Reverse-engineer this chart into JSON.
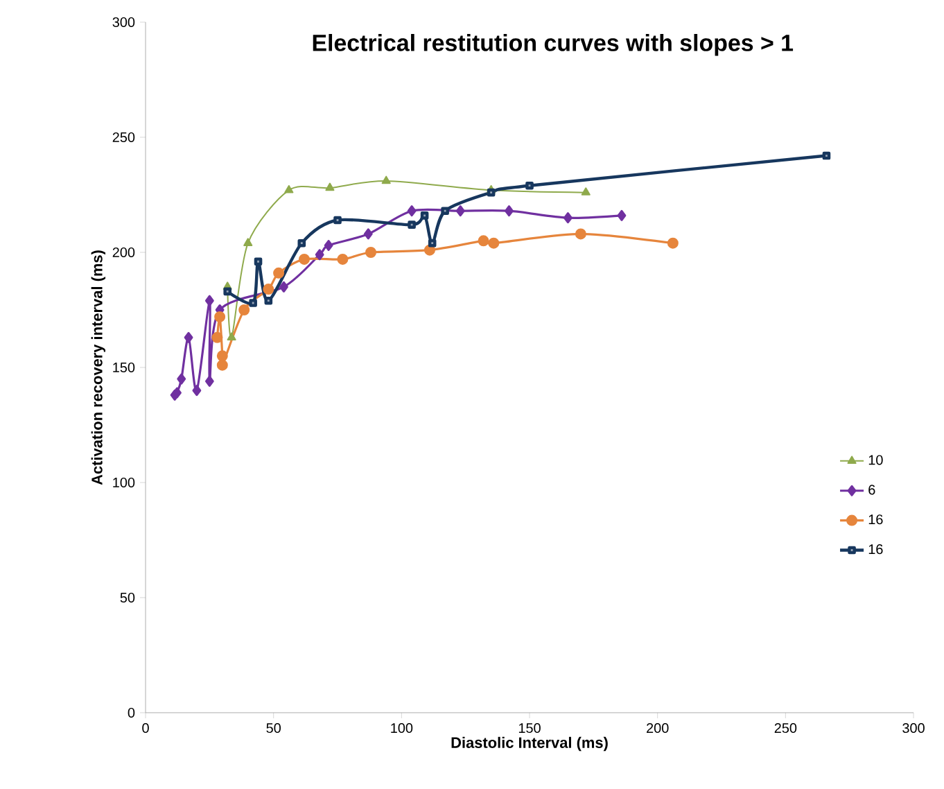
{
  "chart_data": {
    "type": "line",
    "title": "Electrical restitution curves with slopes > 1",
    "xlabel": "Diastolic Interval (ms)",
    "ylabel": "Activation recovery interval (ms)",
    "xlim": [
      0,
      300
    ],
    "ylim": [
      0,
      300
    ],
    "xticks": [
      0,
      50,
      100,
      150,
      200,
      250,
      300
    ],
    "yticks": [
      0,
      50,
      100,
      150,
      200,
      250,
      300
    ],
    "legend": "right",
    "grid": false,
    "series": [
      {
        "name": "10",
        "color": "#8faa4c",
        "marker": "triangle",
        "x": [
          32,
          33.6,
          40,
          56,
          72,
          94,
          135,
          172
        ],
        "values": [
          185,
          163,
          204,
          227,
          228,
          231,
          227,
          226
        ]
      },
      {
        "name": "6",
        "color": "#7030a0",
        "marker": "diamond",
        "x": [
          11.4,
          12.3,
          14,
          16.8,
          20,
          25,
          25,
          29,
          54,
          68,
          71.5,
          87,
          104,
          123,
          142,
          165,
          186
        ],
        "values": [
          138,
          139,
          145,
          163,
          140,
          179,
          144,
          175,
          185,
          199,
          203,
          208,
          218,
          218,
          218,
          215,
          216
        ]
      },
      {
        "name": "16",
        "color": "#e6853c",
        "marker": "circle",
        "x": [
          28,
          29,
          30,
          30,
          38.5,
          48,
          52,
          62,
          77,
          88,
          111,
          132,
          136,
          170,
          206
        ],
        "values": [
          163,
          172,
          155,
          151,
          175,
          184,
          191,
          197,
          197,
          200,
          201,
          205,
          204,
          208,
          204
        ]
      },
      {
        "name": "16",
        "color": "#17375e",
        "marker": "square",
        "x": [
          32,
          42,
          44,
          48,
          61,
          75,
          104,
          109,
          112,
          117,
          135,
          150,
          266
        ],
        "values": [
          183,
          178,
          196,
          179,
          204,
          214,
          212,
          216,
          204,
          218,
          226,
          229,
          242
        ]
      }
    ]
  }
}
